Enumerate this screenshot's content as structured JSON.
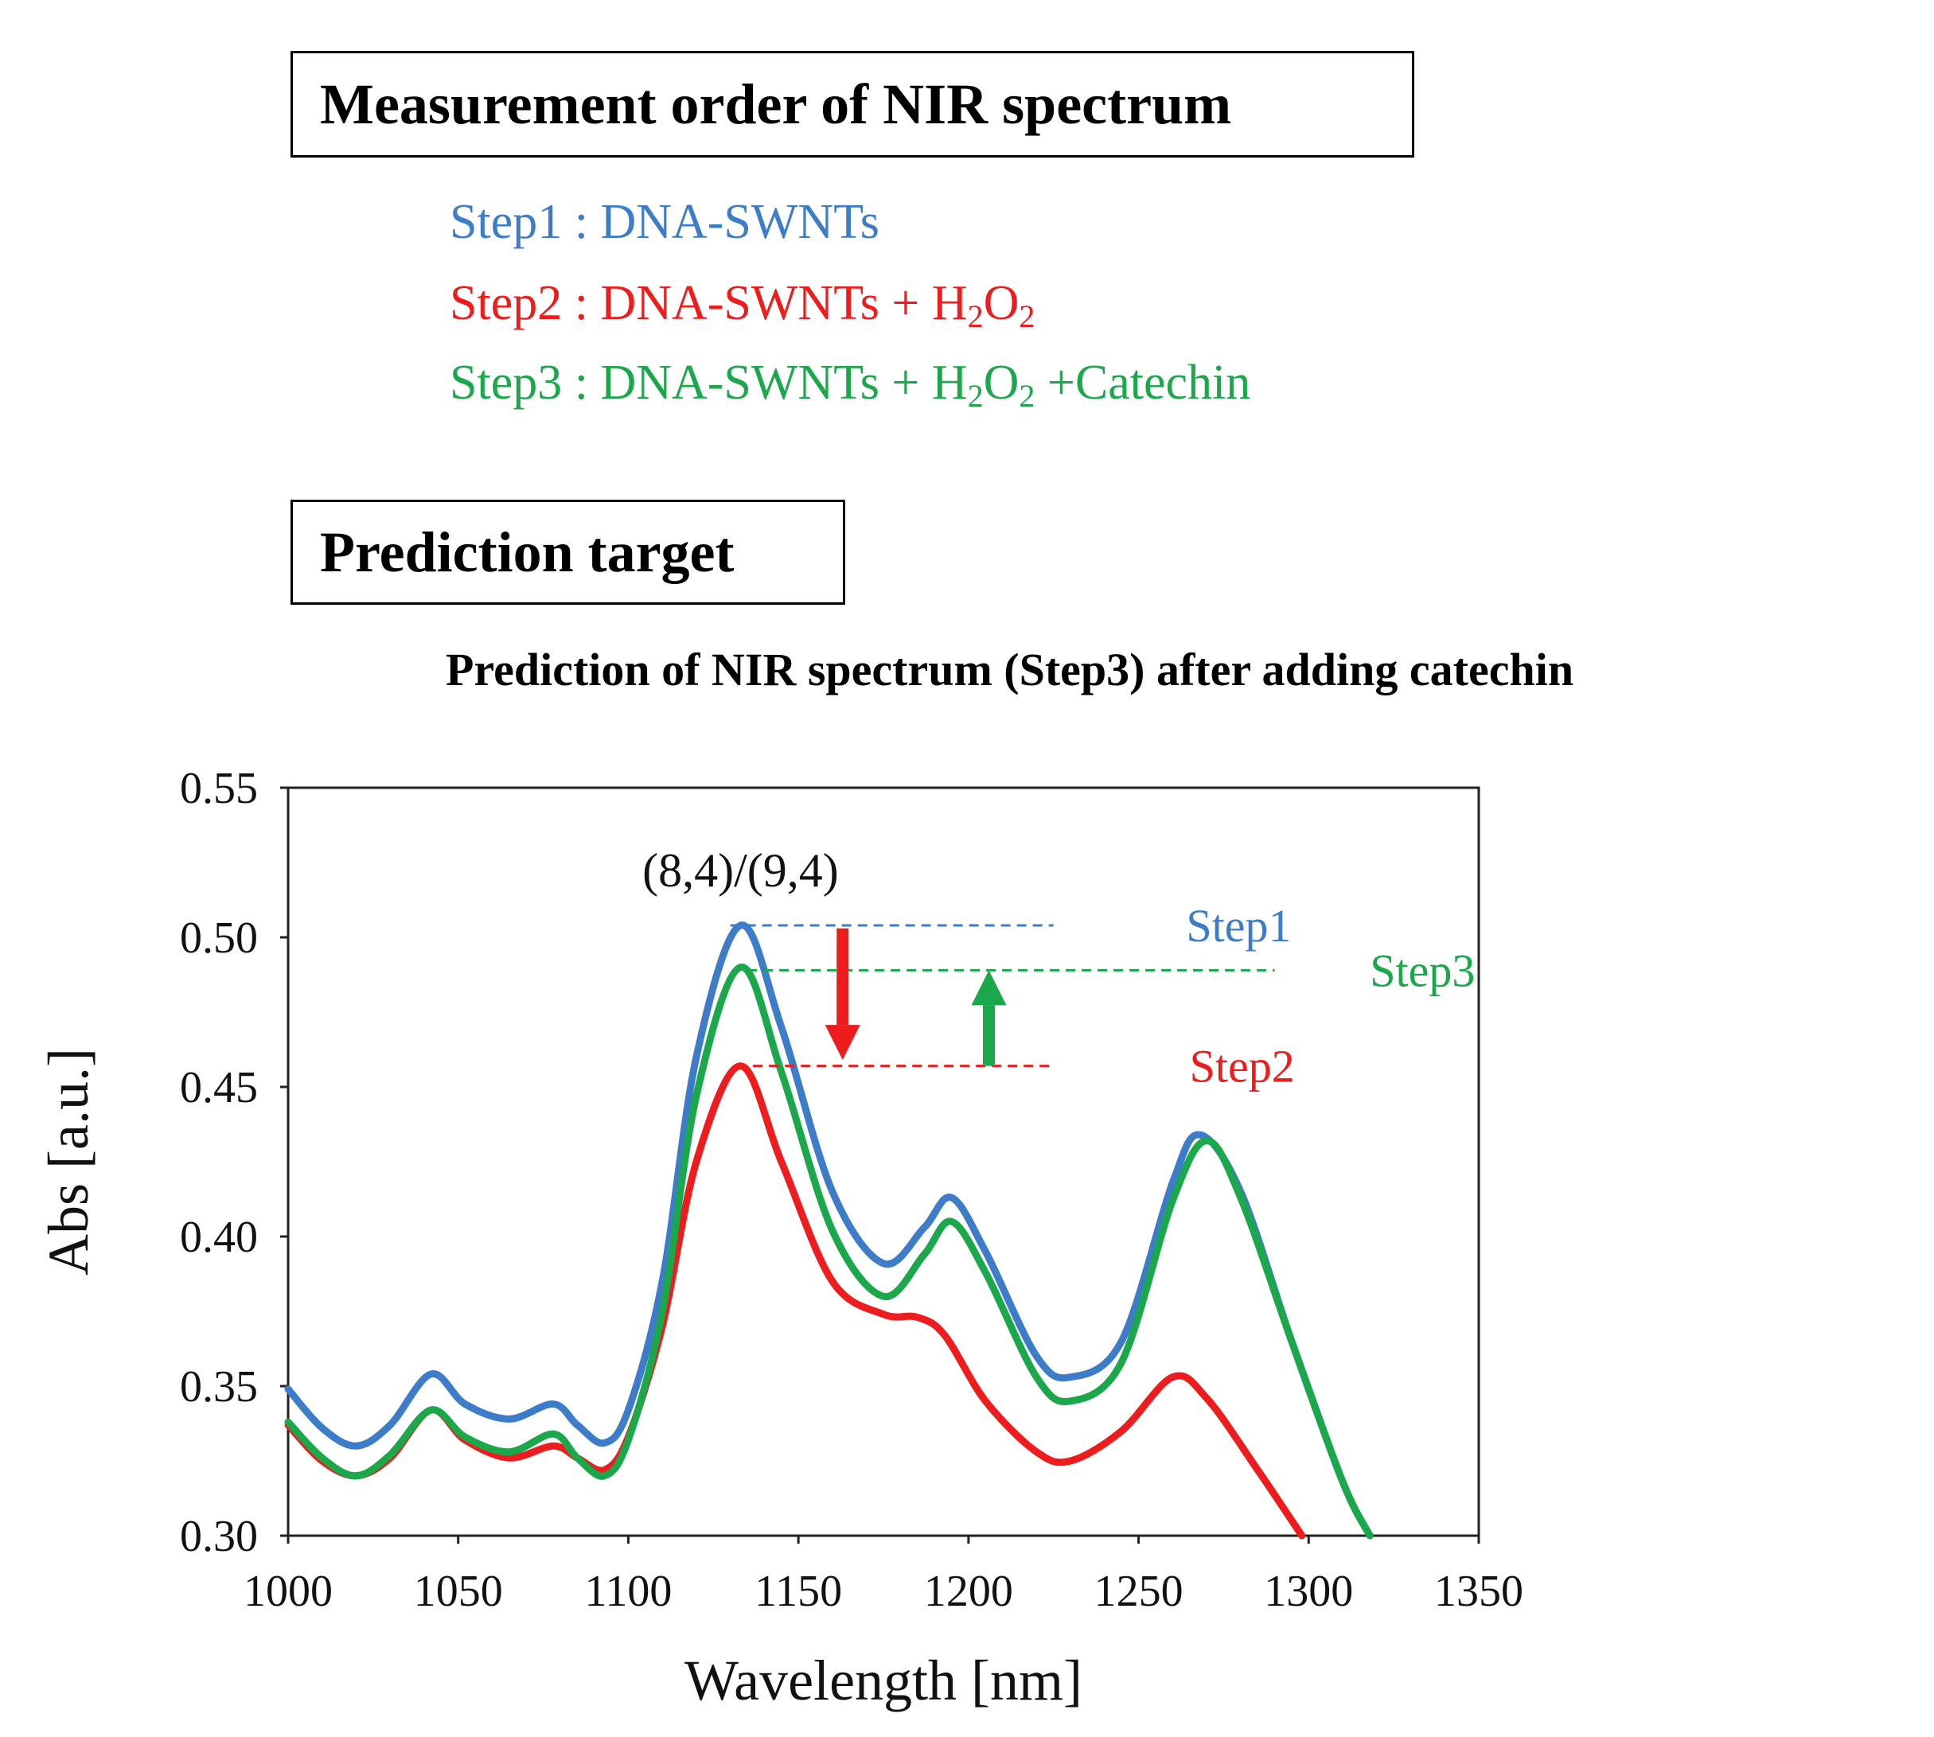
{
  "header": {
    "measurement_box": "Measurement order of NIR spectrum",
    "prediction_box": "Prediction target",
    "subtitle": "Prediction of NIR spectrum (Step3) after adding catechin"
  },
  "steps": [
    {
      "label": "Step1 : DNA-SWNTs",
      "color": "#3d7cc9"
    },
    {
      "label": "Step2 : DNA-SWNTs + H",
      "tail": "O",
      "suffix": "",
      "color": "#ee1c1c"
    },
    {
      "label": "Step3 : DNA-SWNTs + H",
      "tail": "O",
      "suffix": " +Catechin",
      "color": "#1aa84b"
    }
  ],
  "sub2": "2",
  "chart_data": {
    "type": "line",
    "xlabel": "Wavelength [nm]",
    "ylabel": "Abs [a.u.]",
    "xlim": [
      1000,
      1350
    ],
    "ylim": [
      0.3,
      0.55
    ],
    "xticks": [
      "1000",
      "1050",
      "1100",
      "1150",
      "1200",
      "1250",
      "1300",
      "1350"
    ],
    "yticks": [
      "0.30",
      "0.35",
      "0.40",
      "0.45",
      "0.50",
      "0.55"
    ],
    "annotation": "(8,4)/(9,4)",
    "series": [
      {
        "name": "Step1",
        "color": "#3d7cc9",
        "x": [
          1000,
          1010,
          1020,
          1030,
          1042,
          1052,
          1065,
          1078,
          1085,
          1093,
          1100,
          1110,
          1120,
          1133,
          1145,
          1160,
          1175,
          1187,
          1195,
          1205,
          1220,
          1230,
          1245,
          1260,
          1268,
          1280,
          1295,
          1310,
          1318
        ],
        "y": [
          0.349,
          0.336,
          0.33,
          0.337,
          0.354,
          0.344,
          0.339,
          0.344,
          0.337,
          0.331,
          0.342,
          0.385,
          0.46,
          0.504,
          0.47,
          0.415,
          0.391,
          0.403,
          0.413,
          0.395,
          0.36,
          0.353,
          0.365,
          0.418,
          0.434,
          0.415,
          0.365,
          0.318,
          0.3
        ]
      },
      {
        "name": "Step2",
        "color": "#ee1c1c",
        "x": [
          1000,
          1010,
          1020,
          1030,
          1042,
          1052,
          1065,
          1078,
          1085,
          1093,
          1100,
          1110,
          1120,
          1133,
          1145,
          1160,
          1175,
          1185,
          1193,
          1205,
          1220,
          1230,
          1245,
          1260,
          1270,
          1285,
          1298
        ],
        "y": [
          0.337,
          0.325,
          0.32,
          0.326,
          0.342,
          0.332,
          0.326,
          0.33,
          0.326,
          0.322,
          0.333,
          0.37,
          0.425,
          0.457,
          0.425,
          0.385,
          0.374,
          0.373,
          0.367,
          0.345,
          0.328,
          0.325,
          0.335,
          0.353,
          0.346,
          0.322,
          0.3
        ]
      },
      {
        "name": "Step3",
        "color": "#1aa84b",
        "x": [
          1000,
          1010,
          1020,
          1030,
          1042,
          1052,
          1065,
          1078,
          1085,
          1093,
          1100,
          1110,
          1120,
          1133,
          1145,
          1160,
          1175,
          1187,
          1195,
          1205,
          1220,
          1230,
          1245,
          1260,
          1270,
          1280,
          1295,
          1310,
          1318
        ],
        "y": [
          0.338,
          0.326,
          0.32,
          0.327,
          0.342,
          0.333,
          0.328,
          0.334,
          0.326,
          0.32,
          0.332,
          0.375,
          0.447,
          0.49,
          0.455,
          0.402,
          0.38,
          0.394,
          0.405,
          0.388,
          0.353,
          0.345,
          0.358,
          0.412,
          0.432,
          0.413,
          0.365,
          0.318,
          0.3
        ]
      }
    ],
    "reference_lines": [
      {
        "name": "Step1",
        "y": 0.504,
        "x_start": 1130,
        "x_end": 1225,
        "color": "#3d7cc9"
      },
      {
        "name": "Step3",
        "y": 0.489,
        "x_start": 1135,
        "x_end": 1290,
        "color": "#1aa84b"
      },
      {
        "name": "Step2",
        "y": 0.457,
        "x_start": 1132,
        "x_end": 1225,
        "color": "#ee1c1c"
      }
    ],
    "arrows": [
      {
        "direction": "down",
        "x": 1163,
        "y_from": 0.503,
        "y_to": 0.459,
        "color": "#ee1c1c"
      },
      {
        "direction": "up",
        "x": 1206,
        "y_from": 0.457,
        "y_to": 0.489,
        "color": "#1aa84b"
      }
    ]
  }
}
